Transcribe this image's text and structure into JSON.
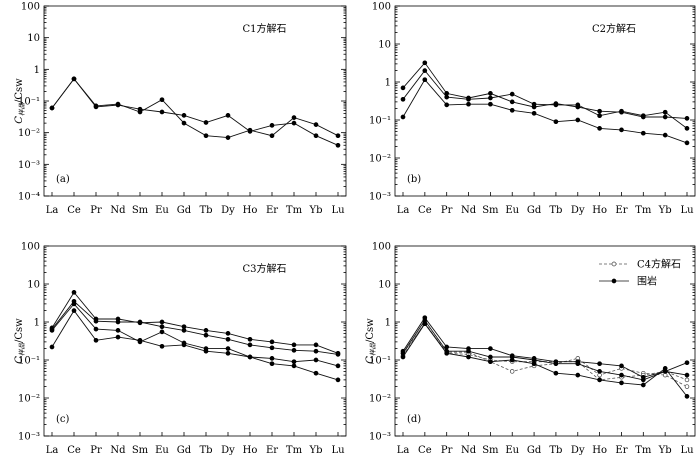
{
  "chart_data": [
    {
      "type": "line",
      "panel": "(a)",
      "title": "C1方解石",
      "ylabel": "C样品/Csw",
      "yscale": "log",
      "ylim": [
        0.0001,
        100
      ],
      "yticks": [
        "10⁻⁴",
        "10⁻³",
        "10⁻²",
        "10⁻¹",
        "1",
        "10",
        "100"
      ],
      "categories": [
        "La",
        "Ce",
        "Pr",
        "Nd",
        "Sm",
        "Eu",
        "Gd",
        "Tb",
        "Dy",
        "Ho",
        "Er",
        "Tm",
        "Yb",
        "Lu"
      ],
      "series": [
        {
          "style": "solid-dot",
          "values": [
            0.06,
            0.5,
            0.065,
            0.075,
            0.055,
            0.045,
            0.035,
            0.021,
            0.035,
            0.011,
            0.017,
            0.02,
            0.008,
            0.004
          ]
        },
        {
          "style": "solid-dot",
          "values": [
            0.06,
            0.5,
            0.07,
            0.08,
            0.045,
            0.11,
            0.02,
            0.008,
            0.007,
            0.012,
            0.008,
            0.03,
            0.018,
            0.008
          ]
        }
      ]
    },
    {
      "type": "line",
      "panel": "(b)",
      "title": "C2方解石",
      "ylabel": "",
      "yscale": "log",
      "ylim": [
        0.001,
        100
      ],
      "yticks": [
        "10⁻³",
        "10⁻²",
        "10⁻¹",
        "1",
        "10",
        "100"
      ],
      "categories": [
        "La",
        "Ce",
        "Pr",
        "Nd",
        "Sm",
        "Eu",
        "Gd",
        "Tb",
        "Dy",
        "Ho",
        "Er",
        "Tm",
        "Yb",
        "Lu"
      ],
      "series": [
        {
          "style": "solid-dot",
          "values": [
            0.7,
            3.2,
            0.5,
            0.38,
            0.5,
            0.3,
            0.22,
            0.27,
            0.22,
            0.17,
            0.16,
            0.12,
            0.12,
            0.11
          ]
        },
        {
          "style": "solid-dot",
          "values": [
            0.35,
            2.0,
            0.4,
            0.35,
            0.38,
            0.48,
            0.26,
            0.25,
            0.25,
            0.13,
            0.17,
            0.13,
            0.16,
            0.06
          ]
        },
        {
          "style": "solid-dot",
          "values": [
            0.12,
            1.15,
            0.25,
            0.26,
            0.26,
            0.18,
            0.15,
            0.09,
            0.1,
            0.06,
            0.055,
            0.045,
            0.04,
            0.025
          ]
        }
      ]
    },
    {
      "type": "line",
      "panel": "(c)",
      "title": "C3方解石",
      "ylabel": "C样品/Csw",
      "yscale": "log",
      "ylim": [
        0.001,
        100
      ],
      "yticks": [
        "10⁻³",
        "10⁻²",
        "10⁻¹",
        "1",
        "10",
        "100"
      ],
      "categories": [
        "La",
        "Ce",
        "Pr",
        "Nd",
        "Sm",
        "Eu",
        "Gd",
        "Tb",
        "Dy",
        "Ho",
        "Er",
        "Tm",
        "Yb",
        "Lu"
      ],
      "series": [
        {
          "style": "solid-dot",
          "values": [
            0.7,
            6.0,
            1.2,
            1.2,
            0.95,
            1.0,
            0.75,
            0.6,
            0.5,
            0.35,
            0.3,
            0.25,
            0.25,
            0.15
          ]
        },
        {
          "style": "solid-dot",
          "values": [
            0.65,
            3.5,
            1.05,
            1.0,
            1.0,
            0.75,
            0.6,
            0.45,
            0.35,
            0.25,
            0.21,
            0.18,
            0.17,
            0.14
          ]
        },
        {
          "style": "solid-dot",
          "values": [
            0.6,
            3.0,
            0.65,
            0.6,
            0.3,
            0.55,
            0.28,
            0.2,
            0.2,
            0.12,
            0.11,
            0.09,
            0.1,
            0.07
          ]
        },
        {
          "style": "solid-dot",
          "values": [
            0.22,
            2.0,
            0.33,
            0.4,
            0.33,
            0.23,
            0.25,
            0.17,
            0.15,
            0.12,
            0.08,
            0.07,
            0.045,
            0.03
          ]
        }
      ]
    },
    {
      "type": "line",
      "panel": "(d)",
      "title": "",
      "ylabel": "C样品/Csw",
      "yscale": "log",
      "ylim": [
        0.001,
        100
      ],
      "yticks": [
        "10⁻³",
        "10⁻²",
        "10⁻¹",
        "1",
        "10",
        "100"
      ],
      "categories": [
        "La",
        "Ce",
        "Pr",
        "Nd",
        "Sm",
        "Eu",
        "Gd",
        "Tb",
        "Dy",
        "Ho",
        "Er",
        "Tm",
        "Yb",
        "Lu"
      ],
      "legend": [
        {
          "label": "C4方解石",
          "style": "dashed-open"
        },
        {
          "label": "围岩",
          "style": "solid-dot"
        }
      ],
      "series": [
        {
          "name": "C4方解石",
          "style": "dashed-open",
          "values": [
            0.15,
            0.9,
            0.16,
            0.16,
            0.09,
            0.05,
            0.07,
            0.08,
            0.11,
            0.04,
            0.06,
            0.045,
            0.04,
            0.02
          ]
        },
        {
          "name": "C4方解石",
          "style": "dashed-open",
          "values": [
            0.13,
            0.95,
            0.15,
            0.14,
            0.1,
            0.09,
            0.09,
            0.09,
            0.09,
            0.03,
            0.035,
            0.04,
            0.05,
            0.03
          ]
        },
        {
          "name": "围岩",
          "style": "solid-dot",
          "values": [
            0.17,
            1.3,
            0.22,
            0.2,
            0.2,
            0.13,
            0.11,
            0.09,
            0.09,
            0.08,
            0.07,
            0.035,
            0.05,
            0.085
          ]
        },
        {
          "name": "围岩",
          "style": "solid-dot",
          "values": [
            0.15,
            1.1,
            0.17,
            0.17,
            0.12,
            0.12,
            0.1,
            0.08,
            0.08,
            0.05,
            0.04,
            0.03,
            0.05,
            0.04
          ]
        },
        {
          "name": "围岩",
          "style": "solid-dot",
          "values": [
            0.12,
            0.9,
            0.15,
            0.12,
            0.09,
            0.1,
            0.08,
            0.045,
            0.04,
            0.03,
            0.025,
            0.022,
            0.06,
            0.011
          ]
        }
      ]
    }
  ]
}
